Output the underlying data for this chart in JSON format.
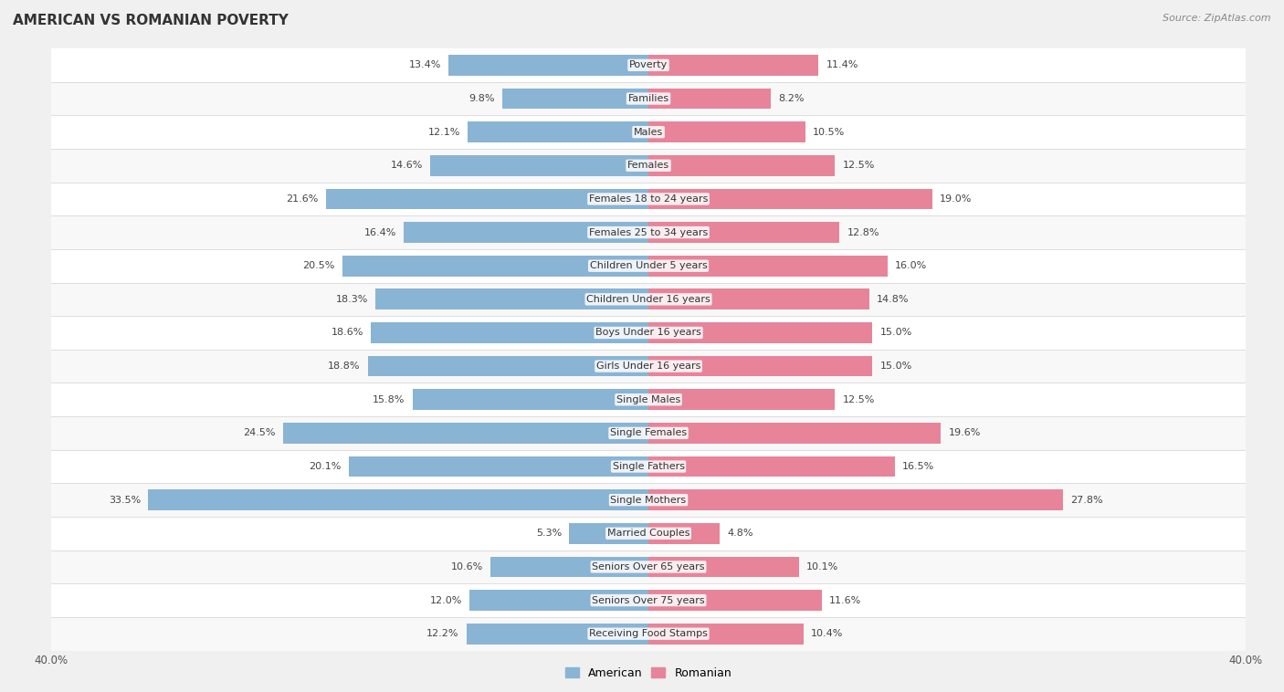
{
  "title": "AMERICAN VS ROMANIAN POVERTY",
  "source": "Source: ZipAtlas.com",
  "categories": [
    "Poverty",
    "Families",
    "Males",
    "Females",
    "Females 18 to 24 years",
    "Females 25 to 34 years",
    "Children Under 5 years",
    "Children Under 16 years",
    "Boys Under 16 years",
    "Girls Under 16 years",
    "Single Males",
    "Single Females",
    "Single Fathers",
    "Single Mothers",
    "Married Couples",
    "Seniors Over 65 years",
    "Seniors Over 75 years",
    "Receiving Food Stamps"
  ],
  "american_values": [
    13.4,
    9.8,
    12.1,
    14.6,
    21.6,
    16.4,
    20.5,
    18.3,
    18.6,
    18.8,
    15.8,
    24.5,
    20.1,
    33.5,
    5.3,
    10.6,
    12.0,
    12.2
  ],
  "romanian_values": [
    11.4,
    8.2,
    10.5,
    12.5,
    19.0,
    12.8,
    16.0,
    14.8,
    15.0,
    15.0,
    12.5,
    19.6,
    16.5,
    27.8,
    4.8,
    10.1,
    11.6,
    10.4
  ],
  "american_color": "#8ab4d4",
  "romanian_color": "#e8849a",
  "background_color": "#f0f0f0",
  "row_color_odd": "#f8f8f8",
  "row_color_even": "#ffffff",
  "xlim": 40.0,
  "bar_height": 0.62,
  "legend_labels": [
    "American",
    "Romanian"
  ],
  "title_fontsize": 11,
  "label_fontsize": 8,
  "value_fontsize": 8,
  "tick_fontsize": 8.5
}
